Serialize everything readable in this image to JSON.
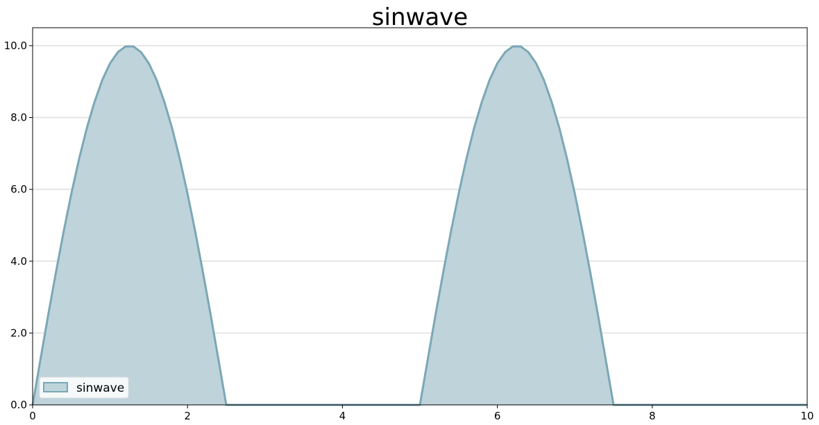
{
  "chart_data": {
    "type": "area",
    "title": "sinwave",
    "xlabel": "",
    "ylabel": "",
    "xlim": [
      0,
      10
    ],
    "ylim": [
      0,
      10.5
    ],
    "x_ticks": [
      0,
      2,
      4,
      6,
      8,
      10
    ],
    "x_tick_labels": [
      "0",
      "2",
      "4",
      "6",
      "8",
      "10"
    ],
    "y_ticks": [
      0,
      2,
      4,
      6,
      8,
      10
    ],
    "y_tick_labels": [
      "0.0",
      "2.0",
      "4.0",
      "6.0",
      "8.0",
      "10.0"
    ],
    "grid": "horizontal",
    "legend_position": "lower-left",
    "series": [
      {
        "name": "sinwave",
        "color": "#7ba7b5",
        "fill": "#bed3da",
        "x": [
          0,
          0.1,
          0.2,
          0.3,
          0.4,
          0.5,
          0.6,
          0.7,
          0.8,
          0.9,
          1.0,
          1.1,
          1.2,
          1.3,
          1.4,
          1.5,
          1.6,
          1.7,
          1.8,
          1.9,
          2.0,
          2.1,
          2.2,
          2.3,
          2.4,
          2.5,
          3.0,
          3.5,
          4.0,
          4.5,
          5.0,
          5.1,
          5.2,
          5.3,
          5.4,
          5.5,
          5.6,
          5.7,
          5.8,
          5.9,
          6.0,
          6.1,
          6.2,
          6.3,
          6.4,
          6.5,
          6.6,
          6.7,
          6.8,
          6.9,
          7.0,
          7.1,
          7.2,
          7.3,
          7.4,
          7.5,
          8.0,
          8.5,
          9.0,
          9.5,
          10.0
        ],
        "y": [
          0,
          1.25,
          2.49,
          3.68,
          4.82,
          5.88,
          6.85,
          7.71,
          8.44,
          9.05,
          9.51,
          9.82,
          9.98,
          9.98,
          9.82,
          9.51,
          9.05,
          8.44,
          7.71,
          6.85,
          5.88,
          4.82,
          3.68,
          2.49,
          1.25,
          0,
          0,
          0,
          0,
          0,
          0,
          1.25,
          2.49,
          3.68,
          4.82,
          5.88,
          6.85,
          7.71,
          8.44,
          9.05,
          9.51,
          9.82,
          9.98,
          9.98,
          9.82,
          9.51,
          9.05,
          8.44,
          7.71,
          6.85,
          5.88,
          4.82,
          3.68,
          2.49,
          1.25,
          0,
          0,
          0,
          0,
          0,
          0
        ]
      }
    ]
  }
}
